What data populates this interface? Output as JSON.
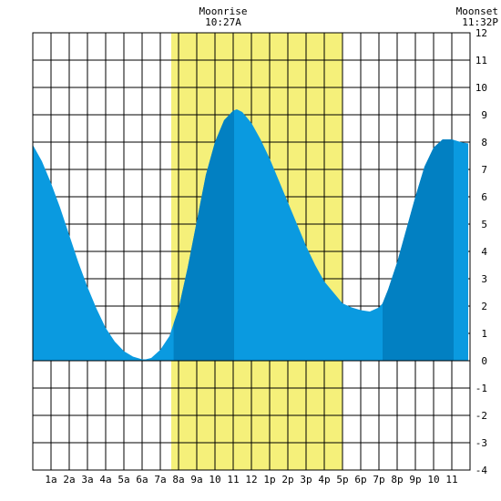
{
  "chart_data": {
    "type": "area",
    "x_tick_labels": [
      "1a",
      "2a",
      "3a",
      "4a",
      "5a",
      "6a",
      "7a",
      "8a",
      "9a",
      "10",
      "11",
      "12",
      "1p",
      "2p",
      "3p",
      "4p",
      "5p",
      "6p",
      "7p",
      "8p",
      "9p",
      "10",
      "11"
    ],
    "x_range_hours": [
      0,
      24
    ],
    "ylim": [
      -4,
      12
    ],
    "y_ticks": [
      -4,
      -3,
      -2,
      -1,
      0,
      1,
      2,
      3,
      4,
      5,
      6,
      7,
      8,
      9,
      10,
      11,
      12
    ],
    "grid": true,
    "moonrise": {
      "label": "Moonrise",
      "time": "10:27A",
      "hour": 10.45
    },
    "moonset": {
      "label": "Moonset",
      "time": "11:32P",
      "hour": 23.53
    },
    "daylight_span_hours": [
      7.6,
      17.0
    ],
    "tide_series": {
      "x": [
        0.0,
        0.5,
        1.0,
        1.5,
        2.0,
        2.5,
        3.0,
        3.5,
        4.0,
        4.5,
        5.0,
        5.5,
        6.0,
        6.2,
        6.5,
        7.0,
        7.5,
        8.0,
        8.5,
        9.0,
        9.5,
        10.0,
        10.5,
        11.0,
        11.2,
        11.5,
        12.0,
        12.5,
        13.0,
        13.5,
        14.0,
        14.5,
        15.0,
        15.5,
        16.0,
        16.5,
        17.0,
        17.5,
        18.0,
        18.5,
        19.0,
        19.2,
        19.5,
        20.0,
        20.5,
        21.0,
        21.5,
        22.0,
        22.5,
        23.0,
        23.5,
        23.9
      ],
      "y": [
        7.9,
        7.3,
        6.5,
        5.6,
        4.6,
        3.6,
        2.7,
        1.9,
        1.2,
        0.7,
        0.35,
        0.15,
        0.05,
        0.05,
        0.1,
        0.4,
        0.9,
        1.9,
        3.4,
        5.1,
        6.8,
        8.0,
        8.8,
        9.15,
        9.2,
        9.1,
        8.7,
        8.1,
        7.4,
        6.6,
        5.8,
        5.0,
        4.2,
        3.5,
        2.9,
        2.5,
        2.1,
        1.95,
        1.85,
        1.8,
        1.95,
        2.1,
        2.6,
        3.6,
        4.8,
        6.0,
        7.1,
        7.8,
        8.1,
        8.1,
        8.0,
        7.95
      ]
    },
    "highlight_bands_hours": [
      [
        7.73,
        11.05
      ],
      [
        19.2,
        23.1
      ]
    ],
    "colors": {
      "daylight": "#f5f07a",
      "tide": "#0a9ae0",
      "tide_highlight": "#0280c2",
      "grid": "#000000"
    }
  }
}
